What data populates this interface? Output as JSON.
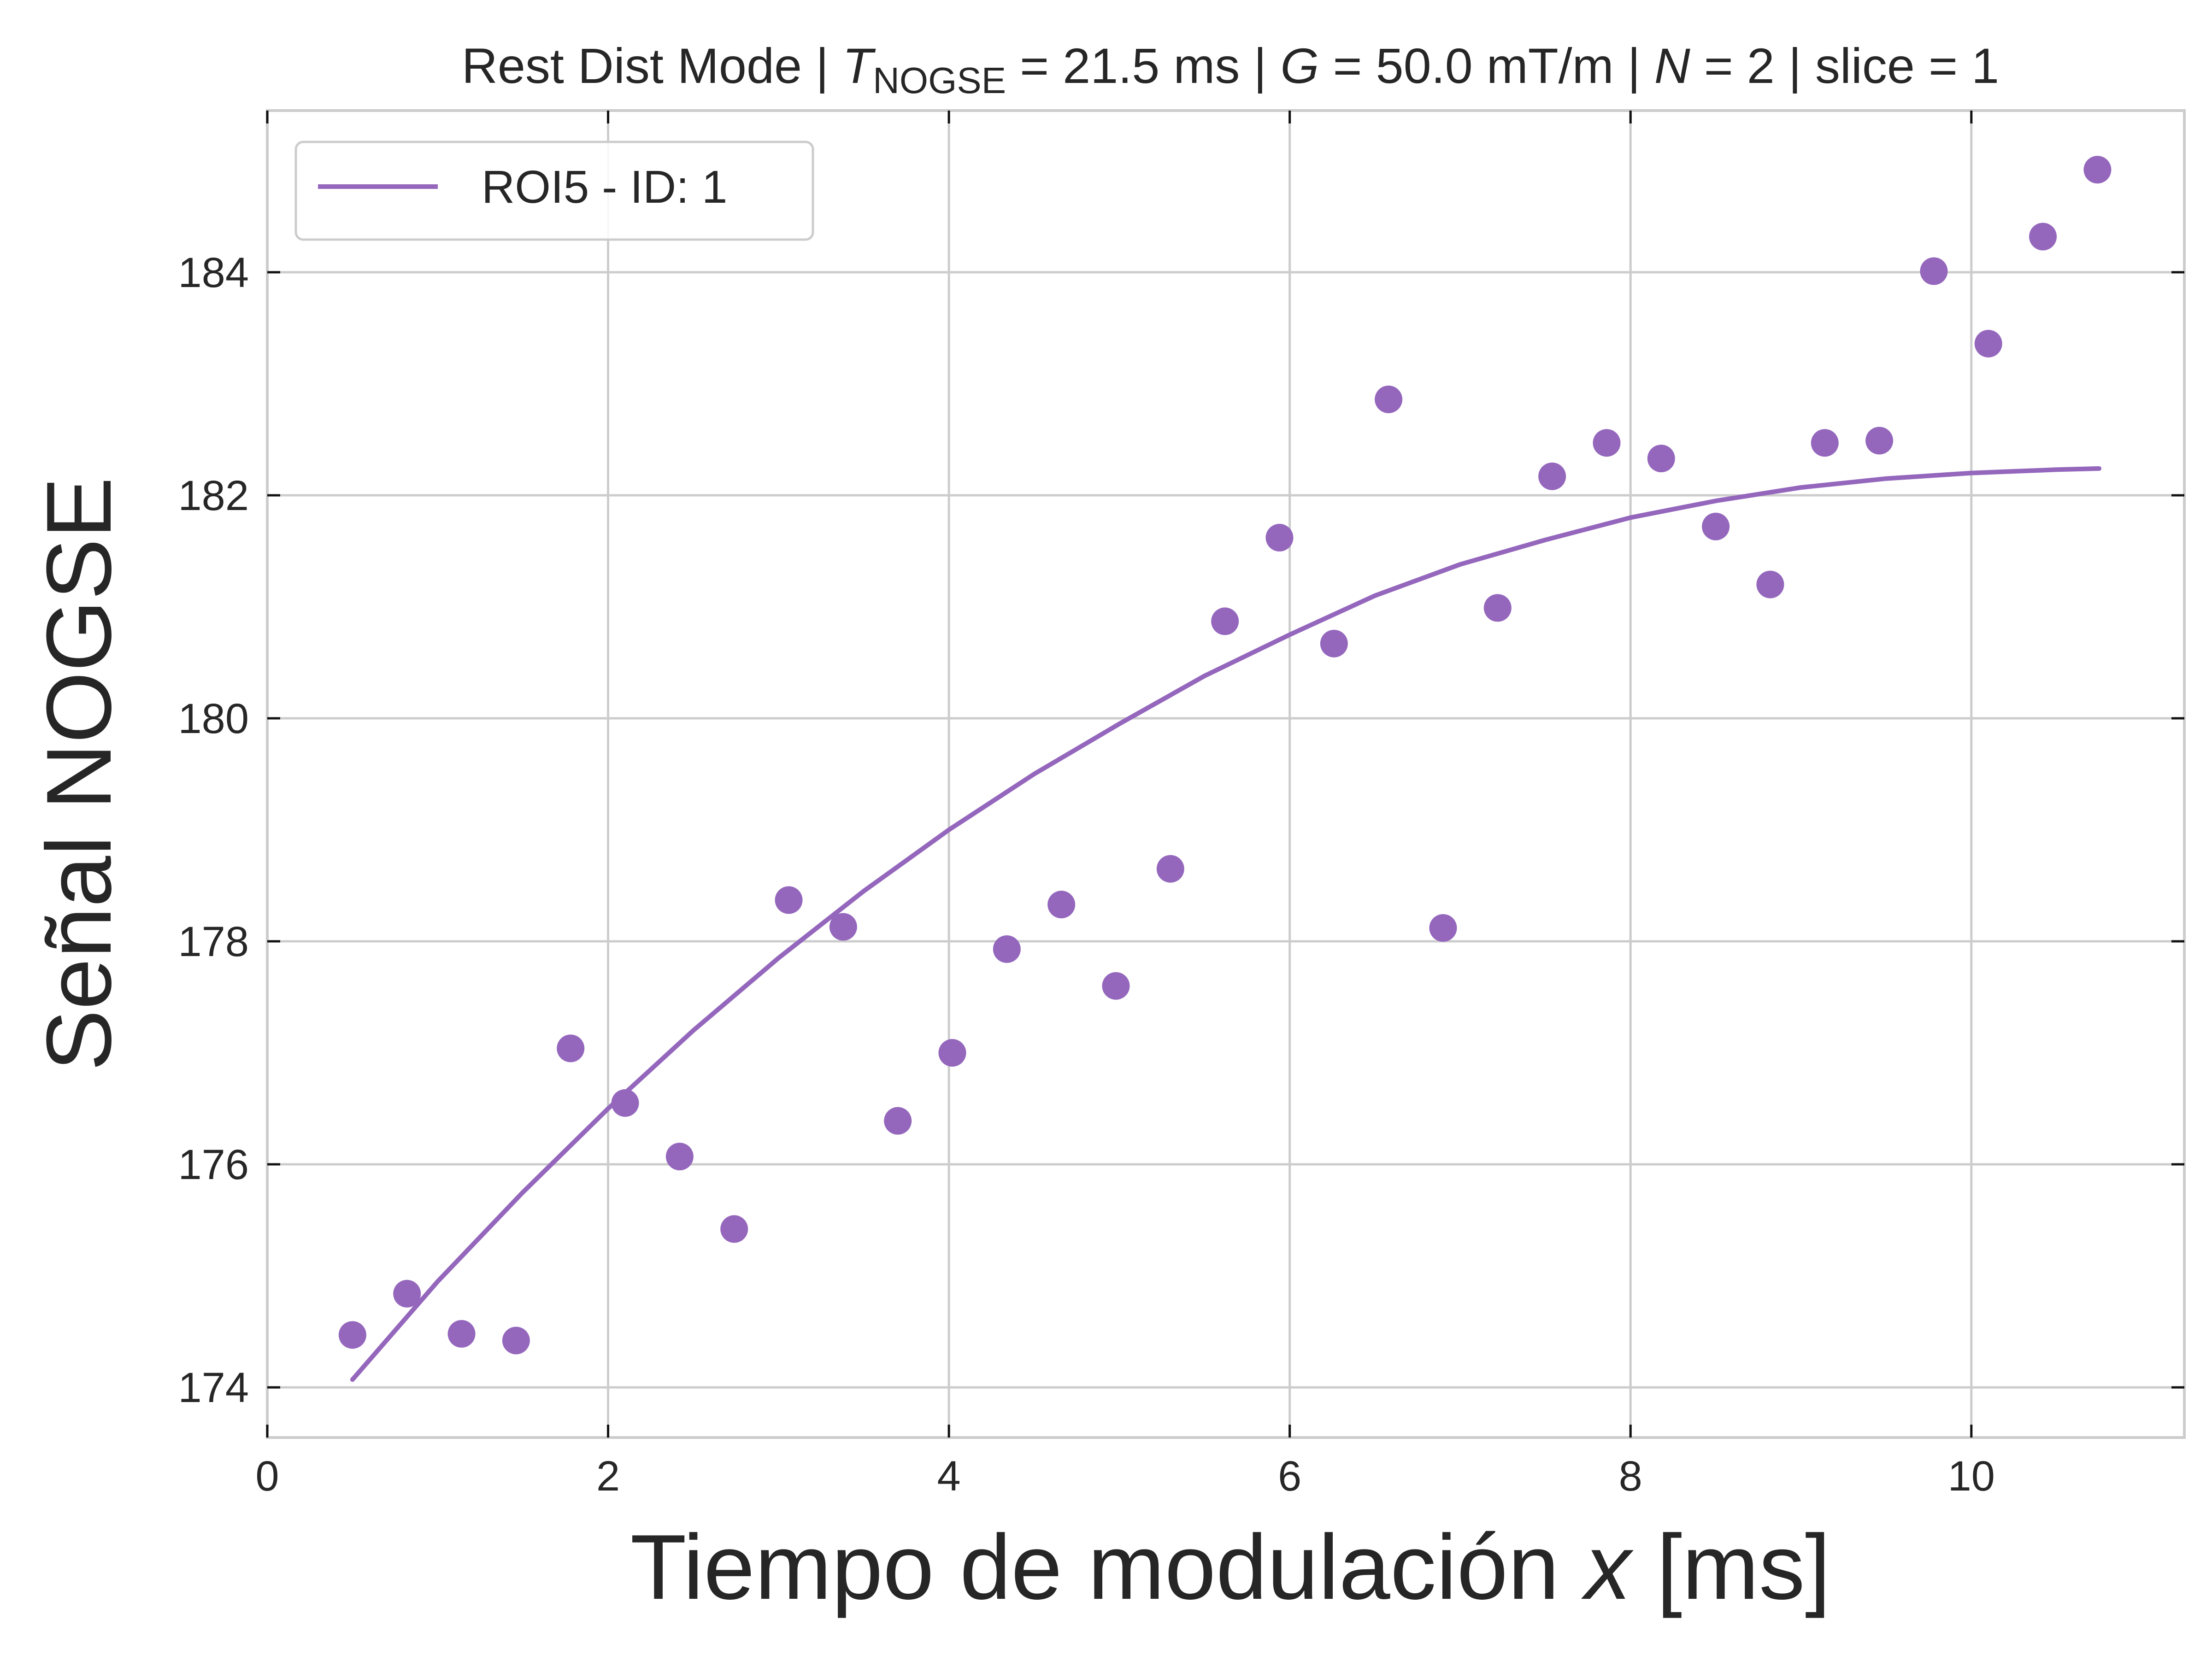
{
  "chart_data": {
    "type": "scatter",
    "title": {
      "prefix": "Rest Dist Mode | ",
      "t_symbol": "T",
      "t_subscript": "NOGSE",
      "t_value": " = 21.5 ms | ",
      "g_symbol": "G",
      "g_value": " = 50.0 mT/m | ",
      "n_symbol": "N",
      "n_value": " = 2 | slice = 1"
    },
    "xlabel": {
      "text": "Tiempo de modulación ",
      "var": "x",
      "unit": " [ms]"
    },
    "ylabel": "Señal NOGSE",
    "xlim": [
      0,
      11.25
    ],
    "ylim": [
      173.55,
      185.45
    ],
    "x_ticks": [
      0,
      2,
      4,
      6,
      8,
      10
    ],
    "y_ticks": [
      174,
      176,
      178,
      180,
      182,
      184
    ],
    "grid": true,
    "legend_position": "top-left",
    "color": "#9467bd",
    "series": [
      {
        "name": "ROI5 - ID: 1",
        "kind": "fit_line",
        "x": [
          0.5,
          1.0,
          1.5,
          2.0,
          2.5,
          3.0,
          3.5,
          4.0,
          4.5,
          5.0,
          5.5,
          6.0,
          6.5,
          7.0,
          7.5,
          8.0,
          8.5,
          9.0,
          9.5,
          10.0,
          10.5,
          10.75
        ],
        "y": [
          174.07,
          174.95,
          175.75,
          176.5,
          177.2,
          177.85,
          178.45,
          179.0,
          179.5,
          179.95,
          180.38,
          180.75,
          181.1,
          181.38,
          181.6,
          181.8,
          181.95,
          182.07,
          182.15,
          182.2,
          182.23,
          182.24
        ]
      },
      {
        "kind": "scatter",
        "x": [
          0.5,
          0.82,
          1.14,
          1.46,
          1.78,
          2.1,
          2.42,
          2.74,
          3.06,
          3.38,
          3.7,
          4.02,
          4.34,
          4.66,
          4.98,
          5.3,
          5.62,
          5.94,
          6.26,
          6.58,
          6.9,
          7.22,
          7.54,
          7.86,
          8.18,
          8.5,
          8.82,
          9.14,
          9.46,
          9.78,
          10.1,
          10.42,
          10.74
        ],
        "y": [
          174.47,
          174.84,
          174.48,
          174.42,
          177.04,
          176.55,
          176.07,
          175.42,
          178.37,
          178.13,
          176.39,
          177.0,
          177.93,
          178.33,
          177.6,
          178.65,
          180.87,
          181.62,
          180.67,
          182.86,
          178.12,
          180.99,
          182.17,
          182.47,
          182.33,
          181.72,
          181.2,
          182.47,
          182.49,
          184.01,
          183.36,
          184.32,
          184.92
        ]
      }
    ]
  }
}
